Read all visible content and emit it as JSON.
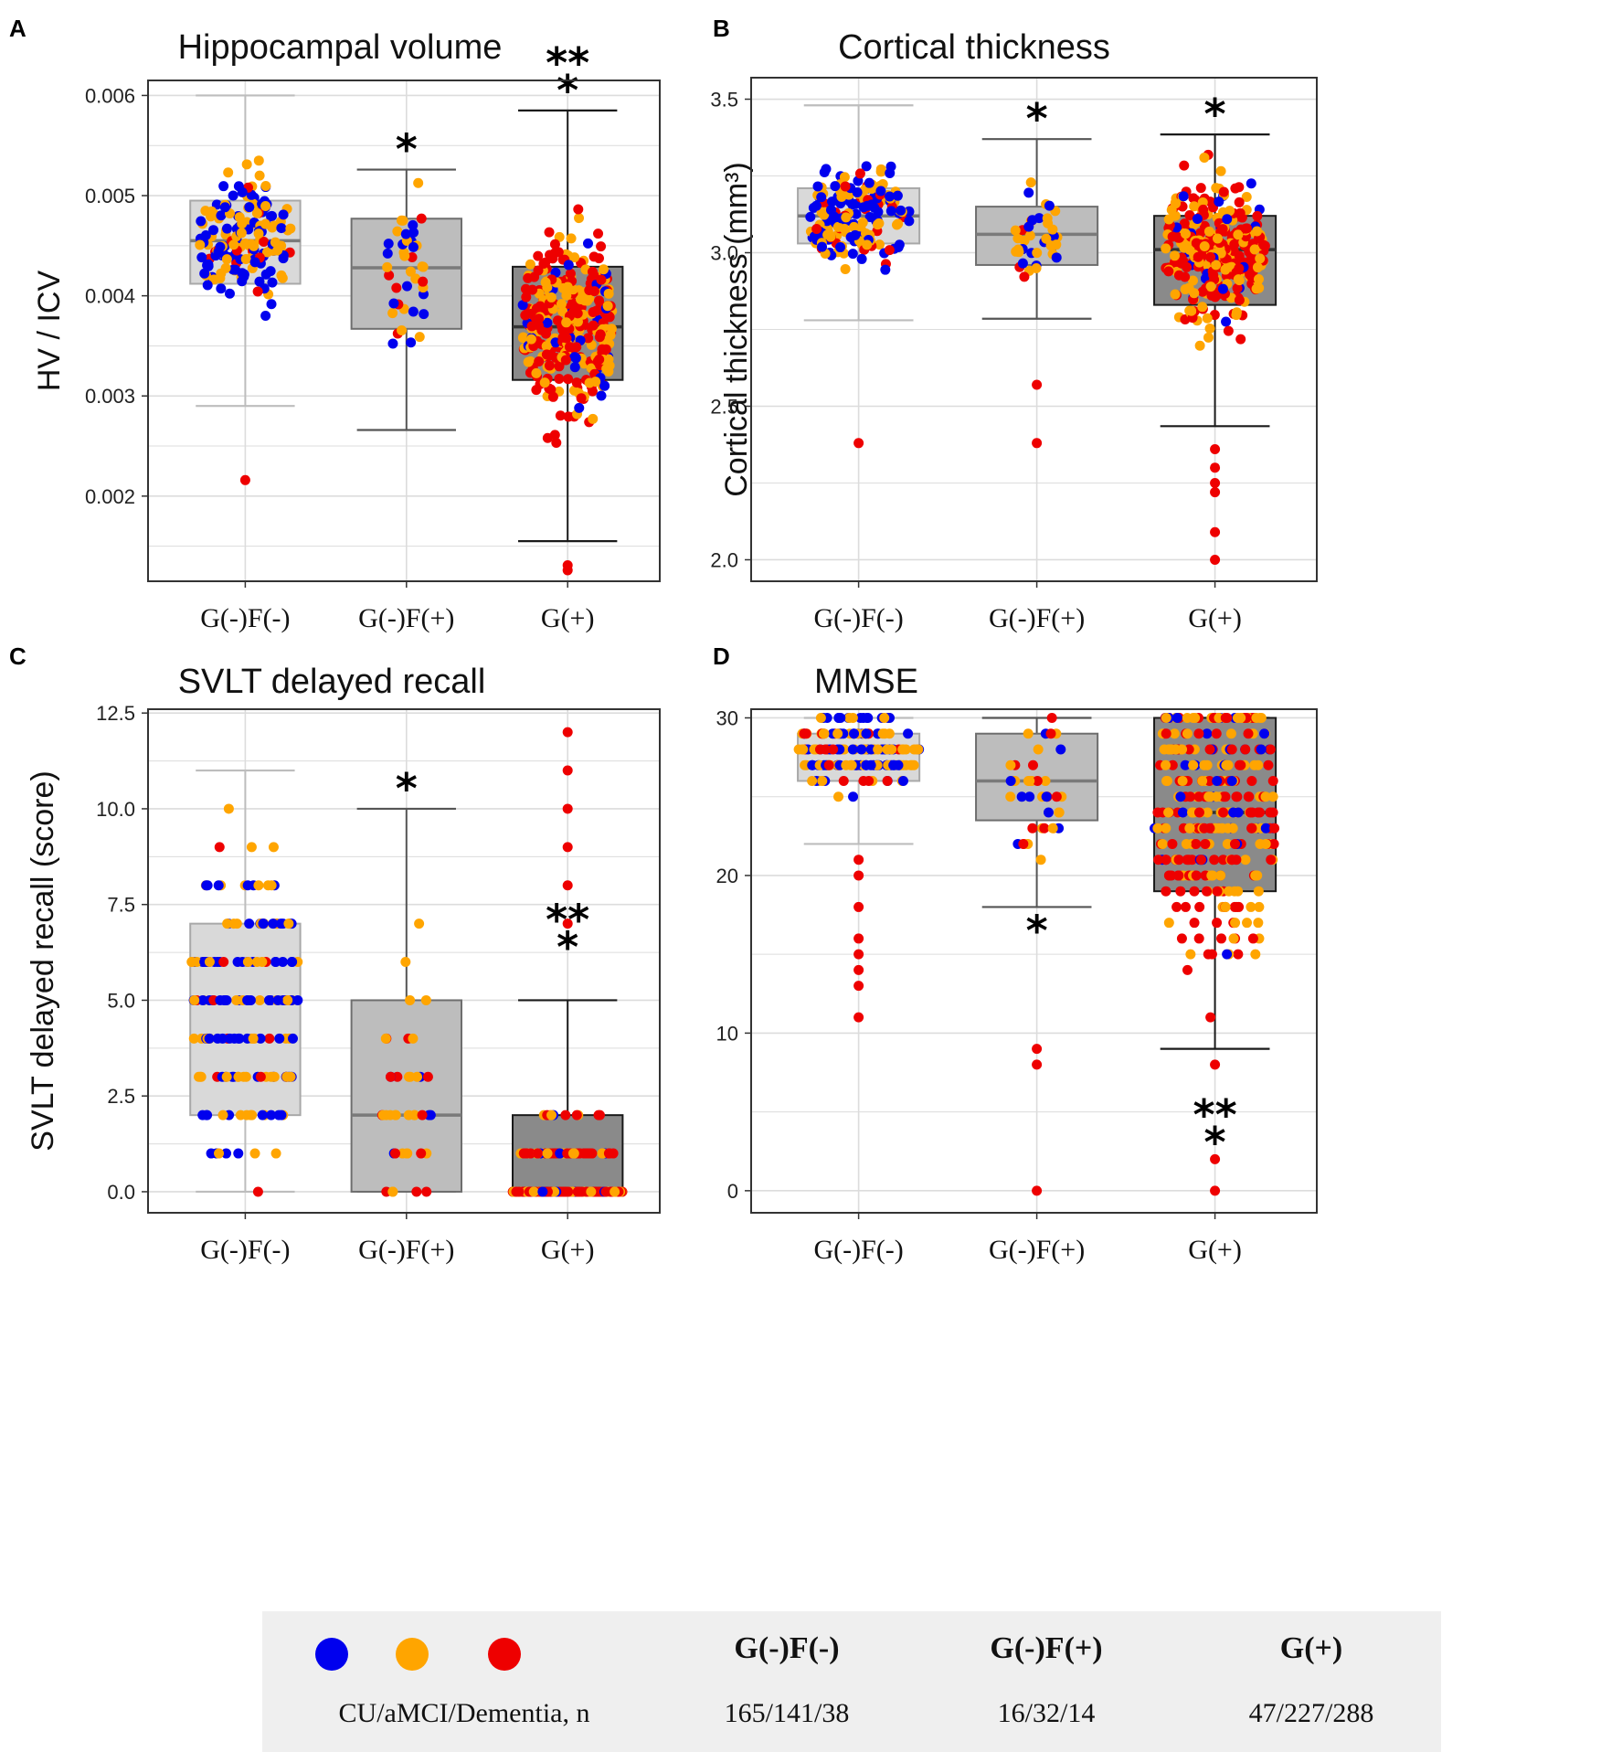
{
  "colors": {
    "cu": "#0000ee",
    "amci": "#ffa500",
    "dementia": "#ee0000",
    "box_light": "#d9d9d9",
    "box_mid": "#bdbdbd",
    "box_dark": "#8a8a8a",
    "grid": "#dcdcdc",
    "legend_bg": "#efefef"
  },
  "chart_data": [
    {
      "panel": "A",
      "type": "box",
      "title": "Hippocampal volume",
      "ylabel": "HV / ICV",
      "categories": [
        "G(-)F(-)",
        "G(-)F(+)",
        "G(+)"
      ],
      "ylim": [
        0.00115,
        0.00615
      ],
      "yticks": [
        0.002,
        0.003,
        0.004,
        0.005,
        0.006
      ],
      "ytick_labels": [
        "0.002",
        "0.003",
        "0.004",
        "0.005",
        "0.006"
      ],
      "boxes": [
        {
          "whisker_low": 0.0029,
          "q1": 0.00412,
          "median": 0.00455,
          "q3": 0.00495,
          "whisker_high": 0.006
        },
        {
          "whisker_low": 0.00266,
          "q1": 0.00367,
          "median": 0.00428,
          "q3": 0.00477,
          "whisker_high": 0.00526
        },
        {
          "whisker_low": 0.00155,
          "q1": 0.00316,
          "median": 0.00369,
          "q3": 0.00429,
          "whisker_high": 0.00585
        }
      ],
      "significance": [
        "",
        "*",
        "**\n*"
      ],
      "outliers": [
        [
          0.00216
        ],
        [],
        [
          0.00131,
          0.00126
        ]
      ]
    },
    {
      "panel": "B",
      "type": "box",
      "title": "Cortical thickness",
      "ylabel": "Cortical thickness (mm³)",
      "categories": [
        "G(-)F(-)",
        "G(-)F(+)",
        "G(+)"
      ],
      "ylim": [
        1.93,
        3.57
      ],
      "yticks": [
        2.0,
        2.5,
        3.0,
        3.5
      ],
      "ytick_labels": [
        "2.0",
        "2.5",
        "3.0",
        "3.5"
      ],
      "boxes": [
        {
          "whisker_low": 2.78,
          "q1": 3.03,
          "median": 3.12,
          "q3": 3.21,
          "whisker_high": 3.48
        },
        {
          "whisker_low": 2.785,
          "q1": 2.96,
          "median": 3.06,
          "q3": 3.15,
          "whisker_high": 3.37
        },
        {
          "whisker_low": 2.435,
          "q1": 2.83,
          "median": 3.01,
          "q3": 3.12,
          "whisker_high": 3.385
        }
      ],
      "significance": [
        "",
        "*",
        "*"
      ],
      "outliers": [
        [
          2.38
        ],
        [
          2.57,
          2.38
        ],
        [
          2.36,
          2.3,
          2.25,
          2.22,
          2.09,
          2.0
        ]
      ]
    },
    {
      "panel": "C",
      "type": "box",
      "title": "SVLT delayed recall",
      "ylabel": "SVLT delayed recall (score)",
      "categories": [
        "G(-)F(-)",
        "G(-)F(+)",
        "G(+)"
      ],
      "ylim": [
        -0.55,
        12.6
      ],
      "yticks": [
        0.0,
        2.5,
        5.0,
        7.5,
        10.0,
        12.5
      ],
      "ytick_labels": [
        "0.0",
        "2.5",
        "5.0",
        "7.5",
        "10.0",
        "12.5"
      ],
      "boxes": [
        {
          "whisker_low": 0,
          "q1": 2,
          "median": 5,
          "q3": 7,
          "whisker_high": 11
        },
        {
          "whisker_low": 0,
          "q1": 0,
          "median": 2,
          "q3": 5,
          "whisker_high": 10
        },
        {
          "whisker_low": 0,
          "q1": 0,
          "median": 0,
          "q3": 2,
          "whisker_high": 5
        }
      ],
      "significance": [
        "",
        "*",
        "**\n*"
      ],
      "outliers": [
        [],
        [],
        [
          7,
          8,
          9,
          10,
          11,
          12
        ]
      ]
    },
    {
      "panel": "D",
      "type": "box",
      "title": "MMSE",
      "ylabel": "",
      "categories": [
        "G(-)F(-)",
        "G(-)F(+)",
        "G(+)"
      ],
      "ylim": [
        -1.4,
        30.55
      ],
      "yticks": [
        0,
        10,
        20,
        30
      ],
      "ytick_labels": [
        "0",
        "10",
        "20",
        "30"
      ],
      "boxes": [
        {
          "whisker_low": 22,
          "q1": 26,
          "median": 28,
          "q3": 29,
          "whisker_high": 30
        },
        {
          "whisker_low": 18,
          "q1": 23.5,
          "median": 26,
          "q3": 29,
          "whisker_high": 30
        },
        {
          "whisker_low": 9,
          "q1": 19,
          "median": 24,
          "q3": 30,
          "whisker_high": 30
        }
      ],
      "significance": [
        "",
        "*",
        "**\n*"
      ],
      "outliers": [
        [
          21,
          20,
          18,
          16,
          15,
          14,
          13,
          11
        ],
        [
          9,
          8,
          0
        ],
        [
          8,
          2,
          0
        ]
      ]
    }
  ],
  "legend": {
    "group_label": "CU/aMCI/Dementia, n",
    "groups": [
      {
        "name": "G(-)F(-)",
        "counts": "165/141/38"
      },
      {
        "name": "G(-)F(+)",
        "counts": "16/32/14"
      },
      {
        "name": "G(+)",
        "counts": "47/227/288"
      }
    ]
  }
}
